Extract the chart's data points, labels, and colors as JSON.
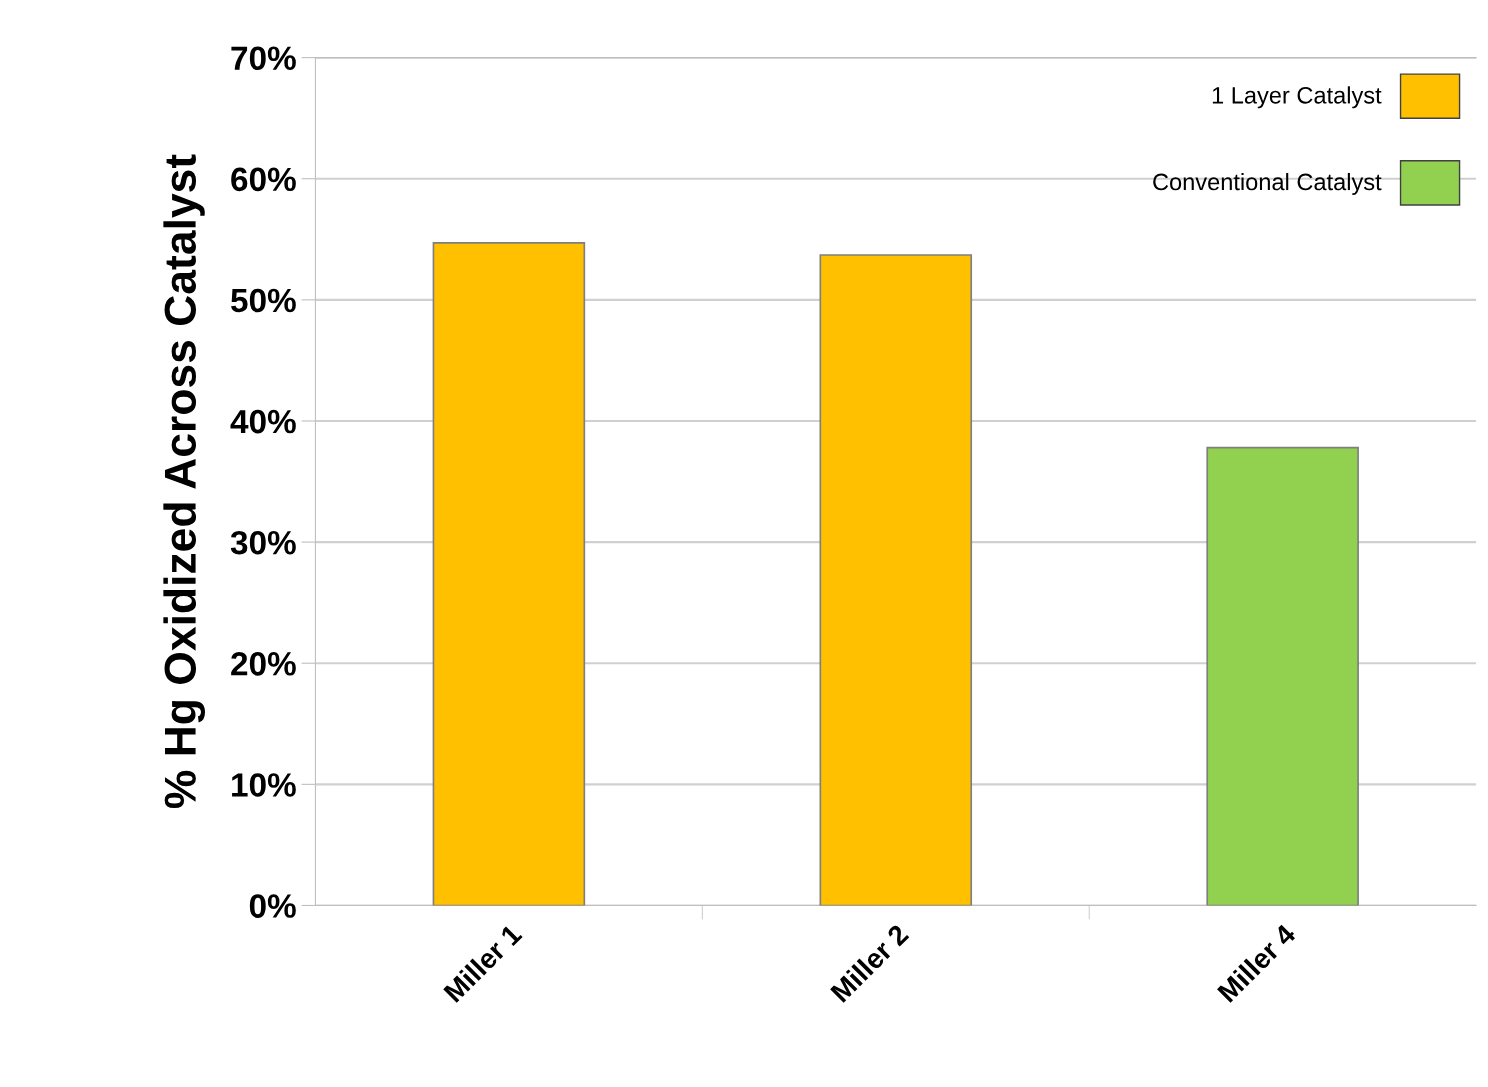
{
  "chart_data": {
    "type": "bar",
    "ylabel": "% Hg Oxidized Across Catalyst",
    "categories": [
      "Miller 1",
      "Miller 2",
      "Miller 4"
    ],
    "series": [
      {
        "name": "1 Layer Catalyst",
        "color": "#ffc000",
        "values": [
          54.7,
          53.7,
          null
        ]
      },
      {
        "name": "Conventional Catalyst",
        "color": "#92d050",
        "values": [
          null,
          null,
          37.8
        ]
      }
    ],
    "ylim": [
      0,
      70
    ],
    "yticks": [
      {
        "value": 0,
        "label": "0%"
      },
      {
        "value": 10,
        "label": "10%"
      },
      {
        "value": 20,
        "label": "20%"
      },
      {
        "value": 30,
        "label": "30%"
      },
      {
        "value": 40,
        "label": "40%"
      },
      {
        "value": 50,
        "label": "50%"
      },
      {
        "value": 60,
        "label": "60%"
      },
      {
        "value": 70,
        "label": "70%"
      }
    ],
    "grid": "y",
    "legend": "top right"
  }
}
